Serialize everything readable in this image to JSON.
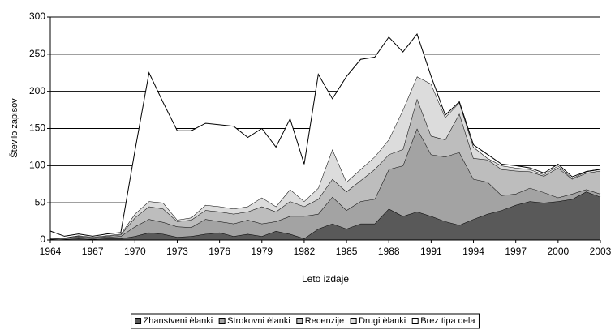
{
  "chart_data": {
    "type": "stacked_area",
    "ylabel": "Število zapisov",
    "xlabel": "Leto izdaje",
    "x": [
      1964,
      1965,
      1966,
      1967,
      1968,
      1969,
      1970,
      1971,
      1972,
      1973,
      1974,
      1975,
      1976,
      1977,
      1978,
      1979,
      1980,
      1981,
      1982,
      1983,
      1984,
      1985,
      1986,
      1987,
      1988,
      1989,
      1990,
      1991,
      1992,
      1993,
      1994,
      1995,
      1996,
      1997,
      1998,
      1999,
      2000,
      2001,
      2002,
      2003
    ],
    "series": [
      {
        "name": "Zhanstveni èlanki",
        "color": "#595959",
        "values": [
          0,
          1,
          2,
          1,
          2,
          2,
          5,
          10,
          8,
          4,
          5,
          8,
          10,
          5,
          8,
          5,
          12,
          8,
          2,
          15,
          22,
          15,
          22,
          22,
          42,
          32,
          38,
          32,
          25,
          20,
          28,
          35,
          40,
          47,
          52,
          50,
          52,
          55,
          65,
          58
        ]
      },
      {
        "name": "Strokovni èlanki",
        "color": "#a3a3a3",
        "values": [
          1,
          1,
          2,
          1,
          2,
          3,
          13,
          18,
          16,
          14,
          12,
          20,
          15,
          17,
          19,
          17,
          13,
          24,
          30,
          20,
          36,
          25,
          30,
          33,
          53,
          68,
          112,
          83,
          87,
          98,
          54,
          43,
          20,
          15,
          18,
          14,
          5,
          7,
          3,
          4
        ]
      },
      {
        "name": "Recenzije",
        "color": "#bdbdbd",
        "values": [
          1,
          1,
          1,
          1,
          1,
          2,
          12,
          17,
          18,
          7,
          10,
          12,
          13,
          13,
          11,
          23,
          13,
          20,
          13,
          20,
          24,
          25,
          28,
          40,
          20,
          22,
          40,
          25,
          23,
          52,
          28,
          30,
          35,
          31,
          22,
          22,
          40,
          20,
          22,
          31
        ]
      },
      {
        "name": "Drugi èlanki",
        "color": "#dcdcdc",
        "values": [
          0,
          0,
          1,
          1,
          1,
          1,
          5,
          7,
          8,
          2,
          3,
          7,
          7,
          7,
          7,
          12,
          7,
          16,
          7,
          15,
          40,
          13,
          15,
          17,
          20,
          53,
          30,
          70,
          30,
          15,
          15,
          2,
          5,
          4,
          3,
          2,
          3,
          1,
          2,
          2
        ]
      },
      {
        "name": "Brez tipa dela",
        "color": "#ffffff",
        "values": [
          10,
          2,
          2,
          1,
          2,
          2,
          85,
          173,
          135,
          120,
          117,
          110,
          110,
          111,
          93,
          93,
          80,
          95,
          50,
          153,
          68,
          142,
          148,
          134,
          138,
          78,
          57,
          10,
          3,
          1,
          3,
          5,
          2,
          3,
          2,
          2,
          2,
          2,
          0,
          0
        ]
      }
    ],
    "xlim": [
      1964,
      2003
    ],
    "xticks": [
      1964,
      1967,
      1970,
      1973,
      1976,
      1979,
      1982,
      1985,
      1988,
      1991,
      1994,
      1997,
      2000,
      2003
    ],
    "ylim": [
      0,
      300
    ],
    "yticks": [
      0,
      50,
      100,
      150,
      200,
      250,
      300
    ],
    "grid": true,
    "legend": "bottom"
  }
}
